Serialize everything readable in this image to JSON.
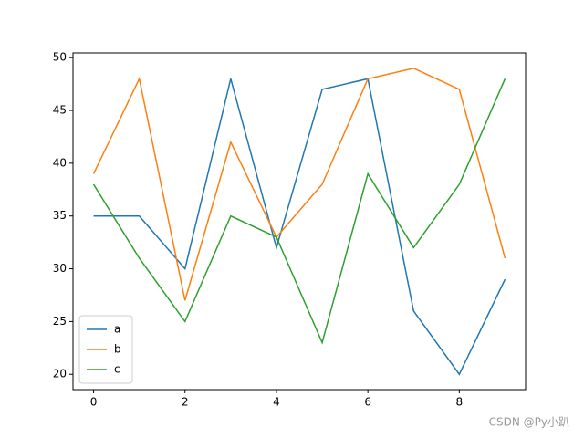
{
  "chart_data": {
    "type": "line",
    "x": [
      0,
      1,
      2,
      3,
      4,
      5,
      6,
      7,
      8,
      9
    ],
    "series": [
      {
        "name": "a",
        "color": "#1f77b4",
        "values": [
          35,
          35,
          30,
          48,
          32,
          47,
          48,
          26,
          20,
          29
        ]
      },
      {
        "name": "b",
        "color": "#ff7f0e",
        "values": [
          39,
          48,
          27,
          42,
          33,
          38,
          48,
          49,
          47,
          31
        ]
      },
      {
        "name": "c",
        "color": "#2ca02c",
        "values": [
          38,
          31,
          25,
          35,
          33,
          23,
          39,
          32,
          38,
          48
        ]
      }
    ],
    "xlim": [
      -0.45,
      9.45
    ],
    "xticks": [
      0,
      2,
      4,
      6,
      8
    ],
    "ylim": [
      18.55,
      50.45
    ],
    "yticks": [
      20,
      25,
      30,
      35,
      40,
      45,
      50
    ],
    "grid": false,
    "legend": "lower left",
    "watermark": "CSDN @Py小趴"
  }
}
